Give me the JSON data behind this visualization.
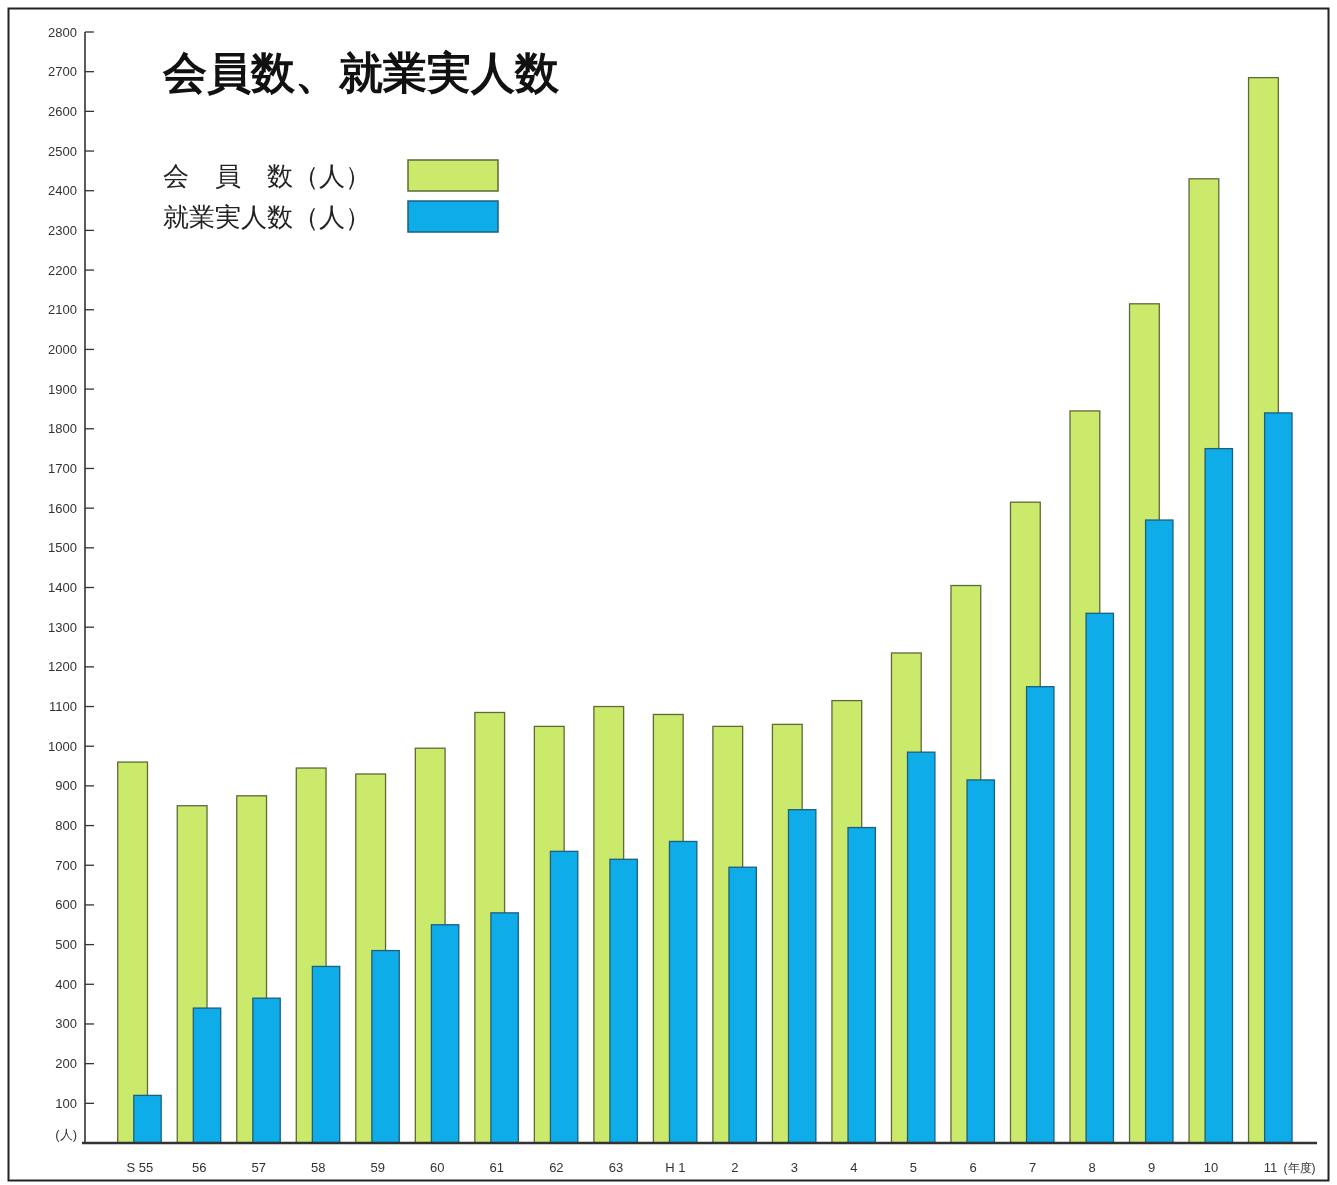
{
  "chart_data": {
    "type": "bar",
    "title": "会員数、就業実人数",
    "xlabel": "(年度)",
    "ylabel": "(人)",
    "categories": [
      "S 55",
      "56",
      "57",
      "58",
      "59",
      "60",
      "61",
      "62",
      "63",
      "H 1",
      "2",
      "3",
      "4",
      "5",
      "6",
      "7",
      "8",
      "9",
      "10",
      "11"
    ],
    "ylim": [
      0,
      2800
    ],
    "yticks": [
      100,
      200,
      300,
      400,
      500,
      600,
      700,
      800,
      900,
      1000,
      1100,
      1200,
      1300,
      1400,
      1500,
      1600,
      1700,
      1800,
      1900,
      2000,
      2100,
      2200,
      2300,
      2400,
      2500,
      2600,
      2700,
      2800
    ],
    "legend": "top left",
    "series": [
      {
        "name": "会　員　数（人）",
        "color": "#cbe96b",
        "values": [
          960,
          850,
          875,
          945,
          930,
          995,
          1085,
          1050,
          1100,
          1080,
          1050,
          1055,
          1115,
          1235,
          1405,
          1615,
          1845,
          2115,
          2430,
          2685
        ]
      },
      {
        "name": "就業実人数（人）",
        "color": "#0eadea",
        "values": [
          120,
          340,
          365,
          445,
          485,
          550,
          580,
          735,
          715,
          760,
          695,
          840,
          795,
          985,
          915,
          1150,
          1335,
          1570,
          1750,
          1840
        ]
      }
    ]
  }
}
